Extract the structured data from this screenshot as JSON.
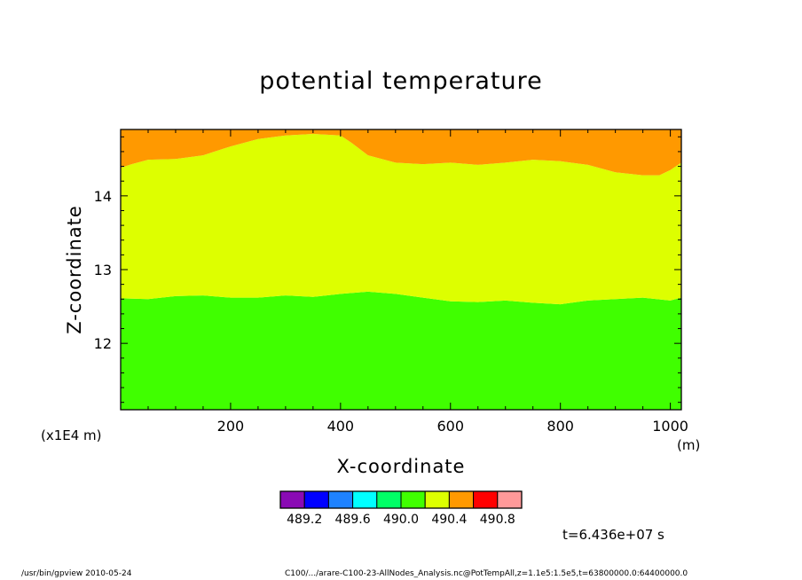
{
  "title": "potential temperature",
  "chart_data": {
    "type": "heatmap",
    "title": "potential temperature",
    "xlabel": "X-coordinate",
    "ylabel": "Z-coordinate",
    "x_unit": "(m)",
    "y_unit": "(x1E4 m)",
    "xlim": [
      0,
      1020
    ],
    "ylim": [
      11.1,
      14.9
    ],
    "x_ticks": [
      200,
      400,
      600,
      800,
      1000
    ],
    "y_ticks": [
      12,
      13,
      14
    ],
    "color_levels": [
      489.2,
      489.6,
      490.0,
      490.4,
      490.8
    ],
    "colorbar_colors": [
      "#8a0ab4",
      "#0000ff",
      "#1e82ff",
      "#00ffff",
      "#00ff66",
      "#40ff00",
      "#ddff00",
      "#ff9900",
      "#ff0000",
      "#ff9999"
    ],
    "regions": [
      {
        "color": "#40ff00",
        "level_range": [
          490.0,
          490.2
        ]
      },
      {
        "color": "#ddff00",
        "level_range": [
          490.2,
          490.4
        ]
      },
      {
        "color": "#ff9900",
        "level_range": [
          490.4,
          490.6
        ]
      }
    ],
    "boundary_lower": {
      "x": [
        0,
        50,
        100,
        150,
        200,
        250,
        300,
        350,
        400,
        450,
        500,
        550,
        600,
        650,
        700,
        750,
        800,
        850,
        900,
        950,
        1000,
        1020
      ],
      "z": [
        12.61,
        12.6,
        12.64,
        12.65,
        12.62,
        12.62,
        12.65,
        12.63,
        12.67,
        12.7,
        12.67,
        12.62,
        12.57,
        12.56,
        12.58,
        12.55,
        12.53,
        12.58,
        12.6,
        12.62,
        12.58,
        12.62
      ]
    },
    "boundary_upper": {
      "x": [
        0,
        20,
        50,
        100,
        150,
        200,
        250,
        300,
        350,
        400,
        420,
        450,
        500,
        550,
        600,
        650,
        700,
        750,
        800,
        850,
        900,
        950,
        980,
        1000,
        1020
      ],
      "z": [
        14.38,
        14.43,
        14.49,
        14.5,
        14.55,
        14.67,
        14.77,
        14.82,
        14.84,
        14.82,
        14.72,
        14.55,
        14.45,
        14.43,
        14.45,
        14.42,
        14.45,
        14.49,
        14.47,
        14.42,
        14.32,
        14.28,
        14.28,
        14.35,
        14.45
      ]
    },
    "time_label": "t=6.436e+07 s"
  },
  "footer": {
    "left": "/usr/bin/gpview  2010-05-24",
    "right": "C100/.../arare-C100-23-AllNodes_Analysis.nc@PotTempAll,z=1.1e5:1.5e5,t=63800000.0:64400000.0"
  }
}
